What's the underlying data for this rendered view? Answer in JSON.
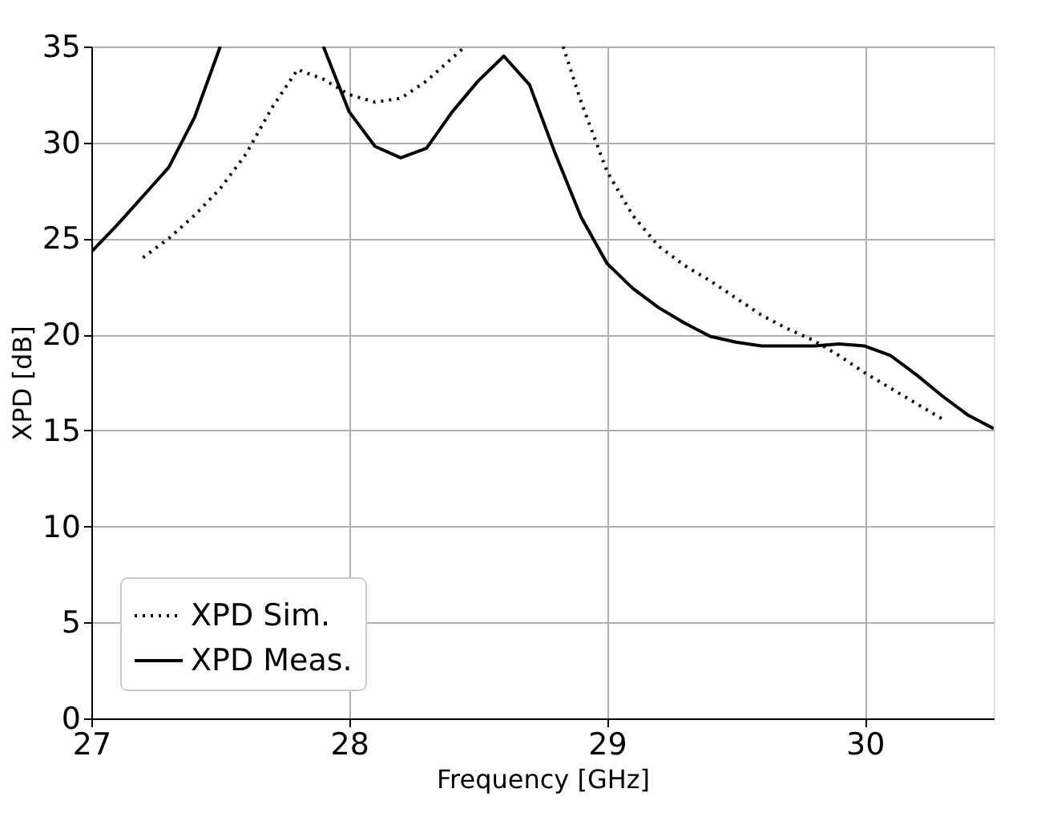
{
  "chart_data": {
    "type": "line",
    "xlabel": "Frequency [GHz]",
    "ylabel": "XPD [dB]",
    "xlim": [
      27,
      30.5
    ],
    "xticks": [
      27,
      28,
      29,
      30
    ],
    "ylim": [
      0,
      35
    ],
    "yticks": [
      0,
      5,
      10,
      15,
      20,
      25,
      30,
      35
    ],
    "grid": true,
    "legend": "bottom left",
    "series": [
      {
        "name": "XPD Sim.",
        "color": "#000000",
        "line_style": "dotted",
        "x": [
          27.2,
          27.3,
          27.4,
          27.5,
          27.6,
          27.7,
          27.8,
          27.9,
          28.0,
          28.1,
          28.2,
          28.3,
          28.4,
          28.45,
          28.6,
          28.83,
          28.9,
          29.0,
          29.1,
          29.2,
          29.3,
          29.4,
          29.5,
          29.6,
          29.7,
          29.8,
          29.9,
          30.0,
          30.1,
          30.2,
          30.3
        ],
        "values": [
          24.0,
          25.0,
          26.2,
          27.6,
          29.4,
          31.8,
          33.8,
          33.3,
          32.5,
          32.1,
          32.3,
          33.2,
          34.4,
          35,
          null,
          35,
          32.1,
          28.5,
          26.2,
          24.6,
          23.6,
          22.8,
          21.9,
          21.0,
          20.3,
          19.7,
          18.9,
          18.0,
          17.2,
          16.4,
          15.6
        ]
      },
      {
        "name": "XPD Meas.",
        "color": "#000000",
        "line_style": "solid",
        "x": [
          27.0,
          27.1,
          27.2,
          27.3,
          27.4,
          27.5,
          27.7,
          27.9,
          28.0,
          28.1,
          28.2,
          28.3,
          28.4,
          28.5,
          28.6,
          28.7,
          28.8,
          28.9,
          29.0,
          29.1,
          29.2,
          29.3,
          29.4,
          29.5,
          29.6,
          29.7,
          29.8,
          29.9,
          30.0,
          30.1,
          30.2,
          30.3,
          30.4,
          30.5
        ],
        "values": [
          24.3,
          25.7,
          27.2,
          28.7,
          31.3,
          35,
          null,
          35,
          31.6,
          29.8,
          29.2,
          29.7,
          31.6,
          33.2,
          34.5,
          33.0,
          29.4,
          26.1,
          23.7,
          22.4,
          21.4,
          20.6,
          19.9,
          19.6,
          19.4,
          19.4,
          19.4,
          19.5,
          19.4,
          18.9,
          17.9,
          16.8,
          15.8,
          15.1
        ]
      }
    ]
  }
}
